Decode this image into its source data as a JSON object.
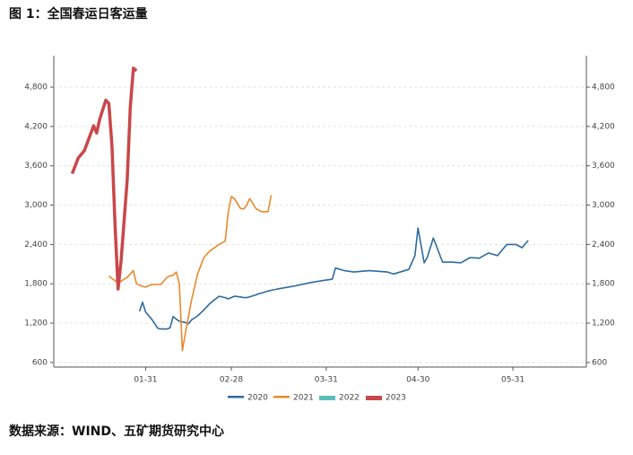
{
  "chart_data": {
    "type": "line",
    "title": "图 1：全国春运日客运量",
    "source": "数据来源：WIND、五矿期货研究中心",
    "x": [
      "01-07",
      "01-09",
      "01-11",
      "01-14",
      "01-15",
      "01-16",
      "01-18",
      "01-19",
      "01-20",
      "01-21",
      "01-22",
      "01-23",
      "01-25",
      "01-26",
      "01-27",
      "01-28",
      "01-29",
      "01-30",
      "01-31",
      "02-02",
      "02-04",
      "02-05",
      "02-07",
      "02-08",
      "02-09",
      "02-10",
      "02-11",
      "02-12",
      "02-13",
      "02-14",
      "02-15",
      "02-17",
      "02-19",
      "02-20",
      "02-21",
      "02-24",
      "02-26",
      "02-27",
      "02-28",
      "03-01",
      "03-03",
      "03-04",
      "03-05",
      "03-06",
      "03-08",
      "03-09",
      "03-10",
      "03-12",
      "03-13",
      "03-15",
      "03-20",
      "03-26",
      "03-30",
      "04-02",
      "04-03",
      "04-06",
      "04-09",
      "04-14",
      "04-20",
      "04-22",
      "04-27",
      "04-29",
      "04-30",
      "05-02",
      "05-03",
      "05-05",
      "05-08",
      "05-11",
      "05-14",
      "05-17",
      "05-20",
      "05-23",
      "05-26",
      "05-29",
      "06-01",
      "06-03",
      "06-05"
    ],
    "xlim": [
      "01-01",
      "06-24"
    ],
    "xticks": [
      "01-31",
      "02-28",
      "03-31",
      "04-30",
      "05-31"
    ],
    "ylim": [
      530,
      5280
    ],
    "yticks": [
      600,
      {
        "value": 1200,
        "label": "1,200"
      },
      {
        "value": 1800,
        "label": "1,800"
      },
      {
        "value": 2400,
        "label": "2,400"
      },
      {
        "value": 3000,
        "label": "3,000"
      },
      {
        "value": 3600,
        "label": "3,600"
      },
      {
        "value": 4200,
        "label": "4,200"
      },
      {
        "value": 4800,
        "label": "4,800"
      }
    ],
    "y2lim": [
      530,
      5280
    ],
    "y2ticks": [
      600,
      {
        "value": 1200,
        "label": "1,200"
      },
      {
        "value": 1800,
        "label": "1,800"
      },
      {
        "value": 2400,
        "label": "2,400"
      },
      {
        "value": 3000,
        "label": "3,000"
      },
      {
        "value": 3600,
        "label": "3,600"
      },
      {
        "value": 4200,
        "label": "4,200"
      },
      {
        "value": 4800,
        "label": "4,800"
      }
    ],
    "grid": true,
    "legend": "bottom",
    "series": [
      {
        "name": "2020",
        "color": "#2e6b9e",
        "values": [
          null,
          null,
          null,
          null,
          null,
          null,
          null,
          null,
          null,
          null,
          null,
          null,
          null,
          null,
          null,
          null,
          1380,
          1520,
          1370,
          1260,
          1120,
          1110,
          1110,
          1130,
          1300,
          1260,
          1230,
          1220,
          1210,
          1190,
          1250,
          1310,
          1400,
          1450,
          1500,
          1610,
          1590,
          1570,
          1590,
          1610,
          1600,
          1590,
          1590,
          1600,
          1630,
          1650,
          1660,
          1690,
          1700,
          1720,
          1760,
          1820,
          1850,
          1870,
          2040,
          2000,
          1980,
          2000,
          1980,
          1950,
          2020,
          2230,
          2650,
          2120,
          2200,
          2500,
          2130,
          2130,
          2120,
          2200,
          2190,
          2270,
          2230,
          2400,
          2400,
          2350,
          2460
        ]
      },
      {
        "name": "2021",
        "color": "#e8892b",
        "values": [
          null,
          null,
          null,
          null,
          null,
          null,
          null,
          1920,
          1880,
          1850,
          1800,
          1840,
          1900,
          1950,
          2000,
          1800,
          1780,
          1760,
          1750,
          1790,
          1790,
          1790,
          1900,
          1920,
          1930,
          1980,
          1800,
          780,
          1050,
          1300,
          1550,
          1950,
          2200,
          2250,
          2300,
          2400,
          2450,
          2900,
          3130,
          3100,
          2950,
          2940,
          3000,
          3100,
          2950,
          2920,
          2900,
          2900,
          3150,
          null,
          null,
          null,
          null,
          null,
          null,
          null,
          null,
          null,
          null,
          null,
          null,
          null,
          null,
          null,
          null,
          null,
          null,
          null,
          null,
          null,
          null,
          null,
          null,
          null,
          null,
          null,
          null
        ]
      },
      {
        "name": "2022",
        "color": "#5bbdb5",
        "values": [
          null,
          null,
          null,
          null,
          null,
          null,
          null,
          null,
          null,
          null,
          null,
          null,
          null,
          null,
          null,
          null,
          null,
          null,
          null,
          null,
          null,
          null,
          null,
          null,
          null,
          null,
          null,
          null,
          null,
          null,
          null,
          null,
          null,
          null,
          null,
          null,
          null,
          null,
          null,
          null,
          null,
          null,
          null,
          null,
          null,
          null,
          null,
          null,
          null,
          null,
          null,
          null,
          null,
          null,
          null,
          null,
          null,
          null,
          null,
          null,
          null,
          null,
          null,
          null,
          null,
          null,
          null,
          null,
          null,
          null,
          null,
          null,
          null,
          null,
          null,
          null,
          null
        ]
      },
      {
        "name": "2023",
        "color": "#c9474a",
        "values": [
          3480,
          3720,
          3830,
          4210,
          4100,
          4310,
          4600,
          4550,
          3900,
          2700,
          1720,
          2160,
          3390,
          4490,
          5090,
          5050,
          null,
          null,
          null,
          null,
          null,
          null,
          null,
          null,
          null,
          null,
          null,
          null,
          null,
          null,
          null,
          null,
          null,
          null,
          null,
          null,
          null,
          null,
          null,
          null,
          null,
          null,
          null,
          null,
          null,
          null,
          null,
          null,
          null,
          null,
          null,
          null,
          null,
          null,
          null,
          null,
          null,
          null,
          null,
          null,
          null,
          null,
          null,
          null,
          null,
          null,
          null,
          null,
          null,
          null,
          null,
          null,
          null,
          null,
          null,
          null,
          null
        ]
      }
    ]
  }
}
